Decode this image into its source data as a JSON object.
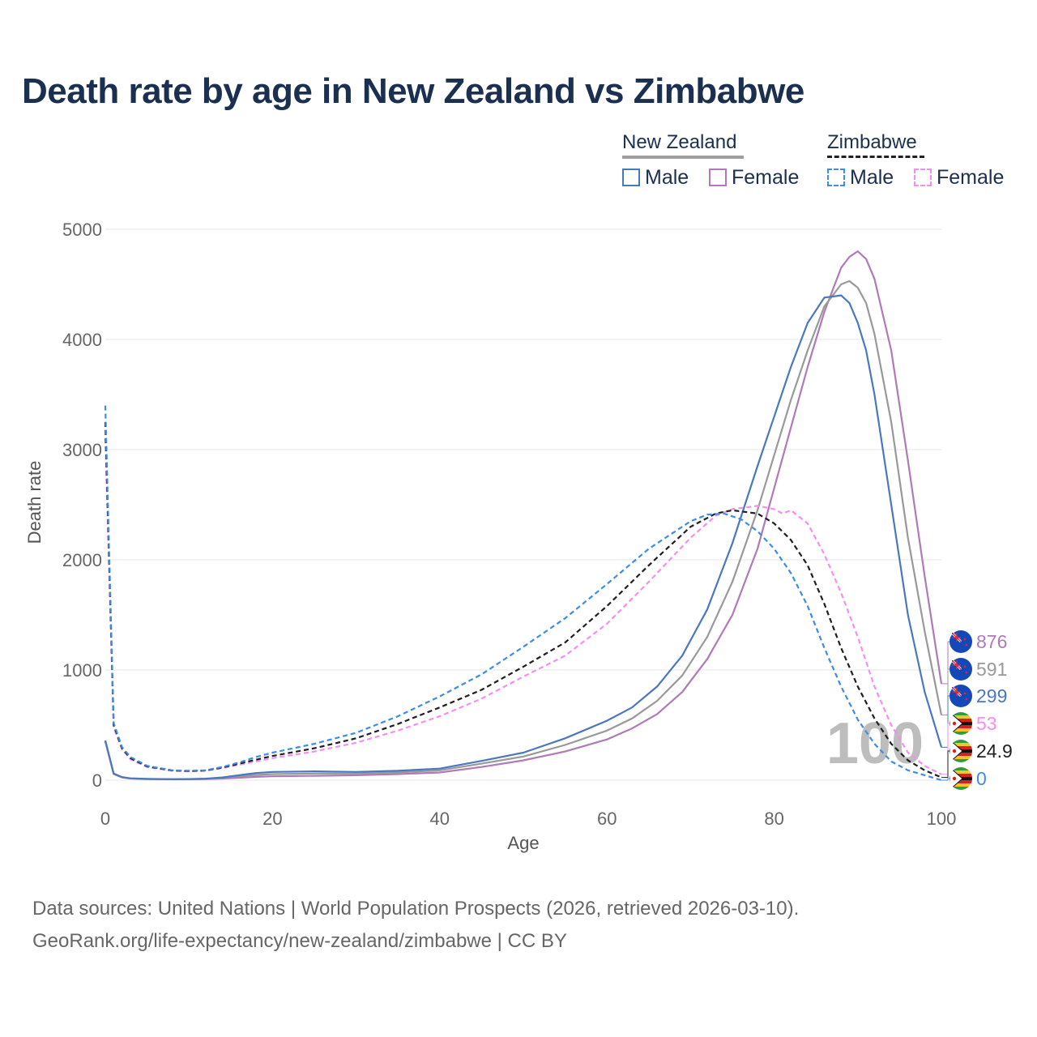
{
  "title": "Death rate by age in New Zealand vs Zimbabwe",
  "legend": {
    "groups": [
      {
        "name": "New Zealand",
        "line_color": "#9e9e9e",
        "dashed": false
      },
      {
        "name": "Zimbabwe",
        "line_color": "#222222",
        "dashed": true
      }
    ],
    "items": [
      {
        "label": "Male",
        "color": "#4a78c0",
        "dashed": false
      },
      {
        "label": "Female",
        "color": "#b07ab9",
        "dashed": false
      },
      {
        "label": "Male",
        "color": "#3d8de6",
        "dashed": true
      },
      {
        "label": "Female",
        "color": "#f58ef0",
        "dashed": true
      }
    ]
  },
  "watermark": "100",
  "source_line1": "Data sources: United Nations | World Population Prospects (2026, retrieved 2026-03-10).",
  "source_line2": "GeoRank.org/life-expectancy/new-zealand/zimbabwe | CC BY",
  "chart_data": {
    "type": "line",
    "xlabel": "Age",
    "ylabel": "Death rate",
    "xlim": [
      0,
      100
    ],
    "ylim": [
      0,
      5000
    ],
    "xticks": [
      0,
      20,
      40,
      60,
      80,
      100
    ],
    "yticks": [
      0,
      1000,
      2000,
      3000,
      4000,
      5000
    ],
    "grid": true,
    "series": [
      {
        "name": "New Zealand Female",
        "color": "#b07ab9",
        "dashed": false,
        "end_label": "876",
        "flag": "nz",
        "x": [
          0,
          1,
          2,
          3,
          5,
          8,
          10,
          12,
          14,
          16,
          18,
          20,
          25,
          30,
          35,
          40,
          45,
          50,
          55,
          60,
          63,
          66,
          69,
          72,
          75,
          78,
          80,
          82,
          84,
          86,
          88,
          89,
          90,
          91,
          92,
          94,
          96,
          98,
          100
        ],
        "y": [
          350,
          55,
          25,
          15,
          10,
          8,
          8,
          10,
          15,
          22,
          30,
          35,
          40,
          45,
          55,
          70,
          120,
          180,
          260,
          370,
          470,
          600,
          800,
          1100,
          1500,
          2100,
          2650,
          3200,
          3750,
          4250,
          4650,
          4750,
          4800,
          4730,
          4550,
          3900,
          2900,
          1850,
          876
        ]
      },
      {
        "name": "New Zealand Both",
        "color": "#999999",
        "dashed": false,
        "end_label": "591",
        "flag": "nz",
        "x": [
          0,
          1,
          2,
          3,
          5,
          8,
          10,
          12,
          14,
          16,
          18,
          20,
          25,
          30,
          35,
          40,
          45,
          50,
          55,
          60,
          63,
          66,
          69,
          72,
          75,
          78,
          80,
          82,
          84,
          86,
          88,
          89,
          90,
          91,
          92,
          94,
          96,
          98,
          100
        ],
        "y": [
          355,
          58,
          27,
          16,
          11,
          9,
          9,
          12,
          20,
          35,
          48,
          55,
          60,
          60,
          70,
          90,
          150,
          215,
          320,
          450,
          560,
          720,
          950,
          1300,
          1800,
          2450,
          2950,
          3450,
          3900,
          4300,
          4500,
          4530,
          4470,
          4330,
          4050,
          3250,
          2200,
          1350,
          591
        ]
      },
      {
        "name": "New Zealand Male",
        "color": "#4a78c0",
        "dashed": false,
        "end_label": "299",
        "flag": "nz",
        "x": [
          0,
          1,
          2,
          3,
          5,
          8,
          10,
          12,
          14,
          16,
          18,
          20,
          25,
          30,
          35,
          40,
          45,
          50,
          55,
          60,
          63,
          66,
          69,
          72,
          75,
          78,
          80,
          82,
          84,
          86,
          88,
          89,
          90,
          91,
          92,
          94,
          96,
          98,
          100
        ],
        "y": [
          360,
          60,
          28,
          17,
          12,
          9,
          10,
          14,
          25,
          45,
          65,
          75,
          80,
          75,
          85,
          105,
          175,
          250,
          380,
          540,
          660,
          850,
          1130,
          1550,
          2150,
          2850,
          3300,
          3750,
          4150,
          4380,
          4400,
          4330,
          4150,
          3900,
          3500,
          2500,
          1500,
          800,
          299
        ]
      },
      {
        "name": "Zimbabwe Female",
        "color": "#f58ef0",
        "dashed": true,
        "end_label": "53",
        "flag": "zw",
        "x": [
          0,
          1,
          2,
          3,
          5,
          8,
          10,
          12,
          14,
          16,
          18,
          20,
          25,
          30,
          35,
          40,
          45,
          50,
          55,
          60,
          65,
          70,
          73,
          75,
          78,
          80,
          81,
          82,
          84,
          86,
          88,
          90,
          92,
          94,
          96,
          98,
          100
        ],
        "y": [
          3100,
          480,
          280,
          190,
          120,
          85,
          80,
          85,
          110,
          140,
          170,
          200,
          260,
          340,
          450,
          580,
          740,
          940,
          1130,
          1420,
          1800,
          2200,
          2400,
          2460,
          2490,
          2460,
          2420,
          2450,
          2330,
          2050,
          1700,
          1300,
          850,
          500,
          250,
          130,
          53
        ]
      },
      {
        "name": "Zimbabwe Both",
        "color": "#1f1f1f",
        "dashed": true,
        "end_label": "24.9",
        "flag": "zw",
        "x": [
          0,
          1,
          2,
          3,
          5,
          8,
          10,
          12,
          14,
          16,
          18,
          20,
          25,
          30,
          35,
          40,
          45,
          50,
          55,
          60,
          65,
          70,
          73,
          75,
          78,
          80,
          82,
          84,
          86,
          88,
          90,
          92,
          94,
          96,
          98,
          100
        ],
        "y": [
          3250,
          500,
          290,
          200,
          125,
          88,
          82,
          88,
          115,
          150,
          185,
          220,
          290,
          380,
          510,
          660,
          820,
          1030,
          1250,
          1580,
          1950,
          2300,
          2420,
          2450,
          2420,
          2330,
          2180,
          1950,
          1600,
          1200,
          850,
          560,
          330,
          180,
          90,
          24.9
        ]
      },
      {
        "name": "Zimbabwe Male",
        "color": "#3d8de6",
        "dashed": true,
        "end_label": "0",
        "flag": "zw",
        "x": [
          0,
          1,
          2,
          3,
          5,
          8,
          10,
          12,
          14,
          16,
          18,
          20,
          25,
          30,
          35,
          40,
          45,
          50,
          55,
          60,
          65,
          70,
          72,
          74,
          76,
          78,
          80,
          82,
          84,
          86,
          88,
          90,
          92,
          94,
          96,
          98,
          100
        ],
        "y": [
          3400,
          520,
          300,
          210,
          130,
          90,
          85,
          90,
          120,
          160,
          210,
          250,
          330,
          430,
          580,
          760,
          960,
          1210,
          1470,
          1780,
          2100,
          2350,
          2410,
          2420,
          2370,
          2260,
          2100,
          1880,
          1580,
          1200,
          850,
          550,
          330,
          170,
          90,
          45,
          0
        ]
      }
    ]
  }
}
